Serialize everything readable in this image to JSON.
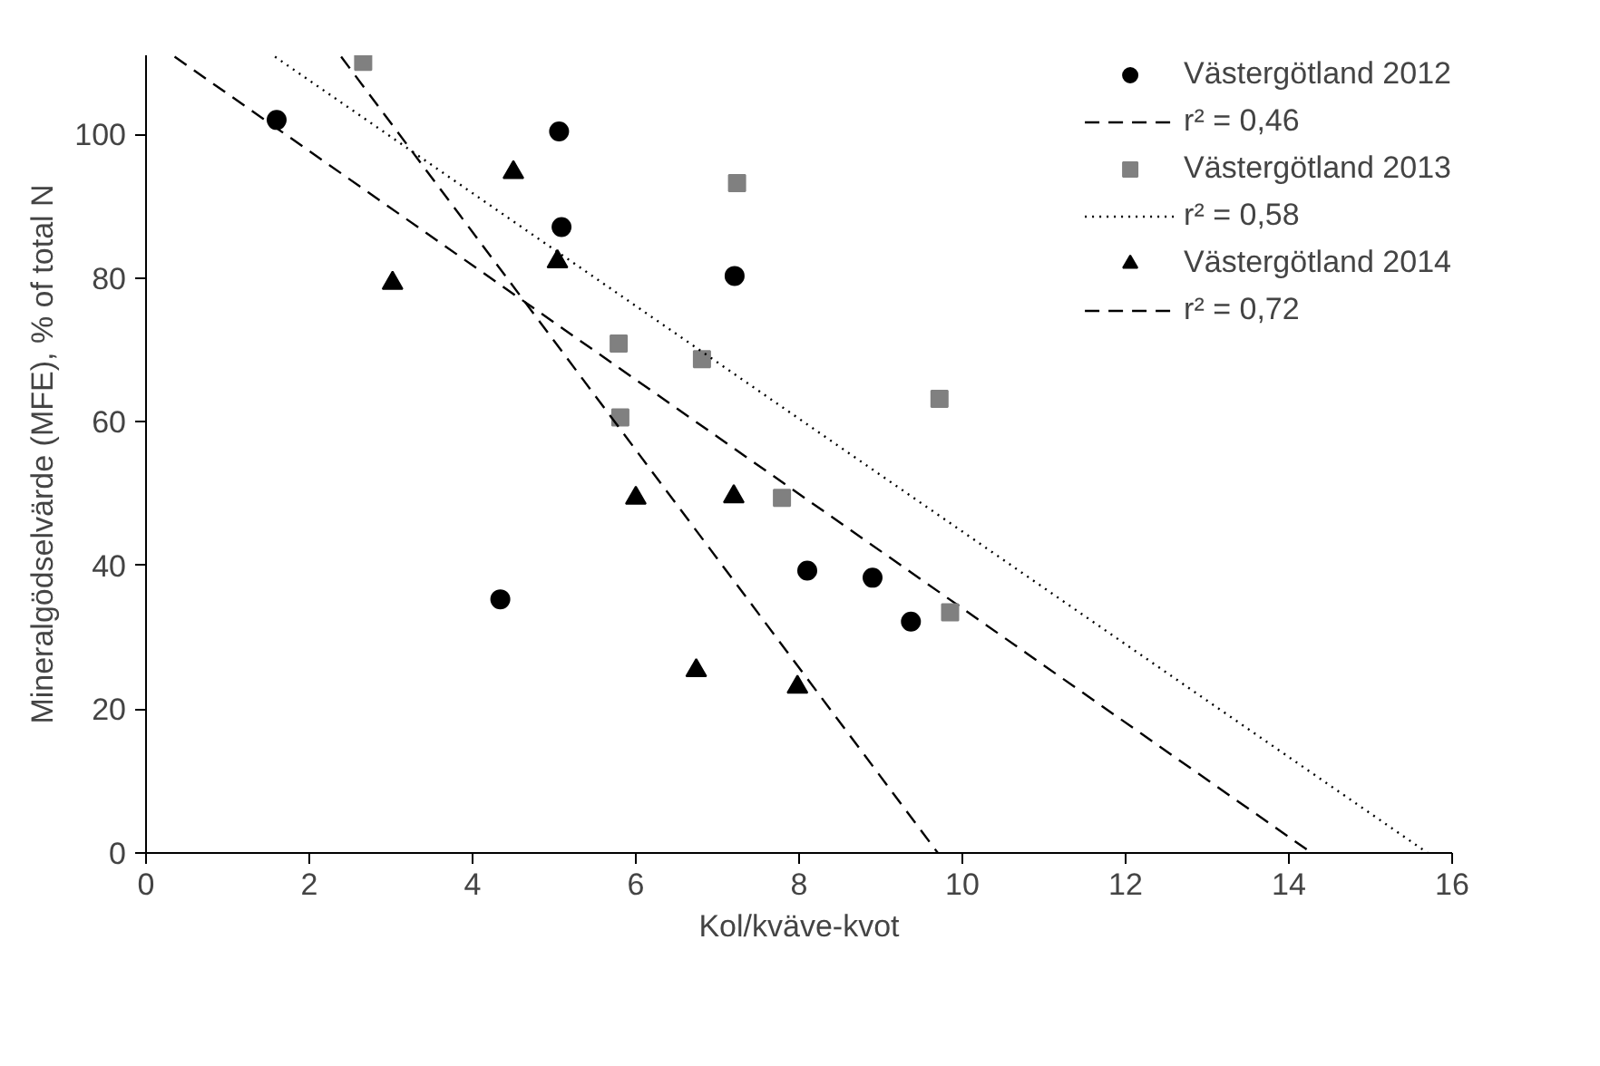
{
  "chart_data": {
    "type": "scatter",
    "xlabel": "Kol/kväve-kvot",
    "ylabel": "Mineralgödselvärde (MFE), % of total N",
    "xlim": [
      0,
      16
    ],
    "ylim": [
      0,
      111
    ],
    "xticks": [
      0,
      2,
      4,
      6,
      8,
      10,
      12,
      14,
      16
    ],
    "yticks": [
      0,
      20,
      40,
      60,
      80,
      100
    ],
    "grid": false,
    "legend": "top right",
    "series": [
      {
        "name": "Västergötland 2012",
        "marker": "circle",
        "color": "#000000",
        "x": [
          1.6,
          5.06,
          5.09,
          7.21,
          4.34,
          8.1,
          8.9,
          9.37
        ],
        "values": [
          102,
          100.4,
          87.1,
          80.3,
          35.3,
          39.3,
          38.3,
          32.2
        ]
      },
      {
        "name": "r² = 0,46",
        "type": "line",
        "line_style": "dashed",
        "color": "#000000",
        "x": [
          0.35,
          14.28
        ],
        "values": [
          110.8,
          0
        ]
      },
      {
        "name": "Västergötland 2013",
        "marker": "square",
        "color": "#808080",
        "x": [
          2.66,
          7.24,
          5.79,
          6.81,
          5.81,
          7.79,
          9.85,
          9.72
        ],
        "values": [
          110.1,
          93.2,
          70.9,
          68.7,
          60.6,
          49.4,
          33.5,
          63.2
        ]
      },
      {
        "name": "r² = 0,58",
        "type": "line",
        "line_style": "dotted",
        "color": "#000000",
        "x": [
          1.58,
          15.7
        ],
        "values": [
          110.8,
          0
        ]
      },
      {
        "name": "Västergötland 2014",
        "marker": "triangle",
        "color": "#000000",
        "x": [
          4.5,
          5.04,
          3.02,
          6.0,
          7.2,
          6.74,
          7.98
        ],
        "values": [
          94.7,
          82.3,
          79.3,
          49.4,
          49.6,
          25.4,
          23.1
        ]
      },
      {
        "name": "r² = 0,72",
        "type": "line",
        "line_style": "dashed",
        "color": "#000000",
        "x": [
          2.39,
          9.7
        ],
        "values": [
          110.8,
          0
        ]
      }
    ]
  }
}
